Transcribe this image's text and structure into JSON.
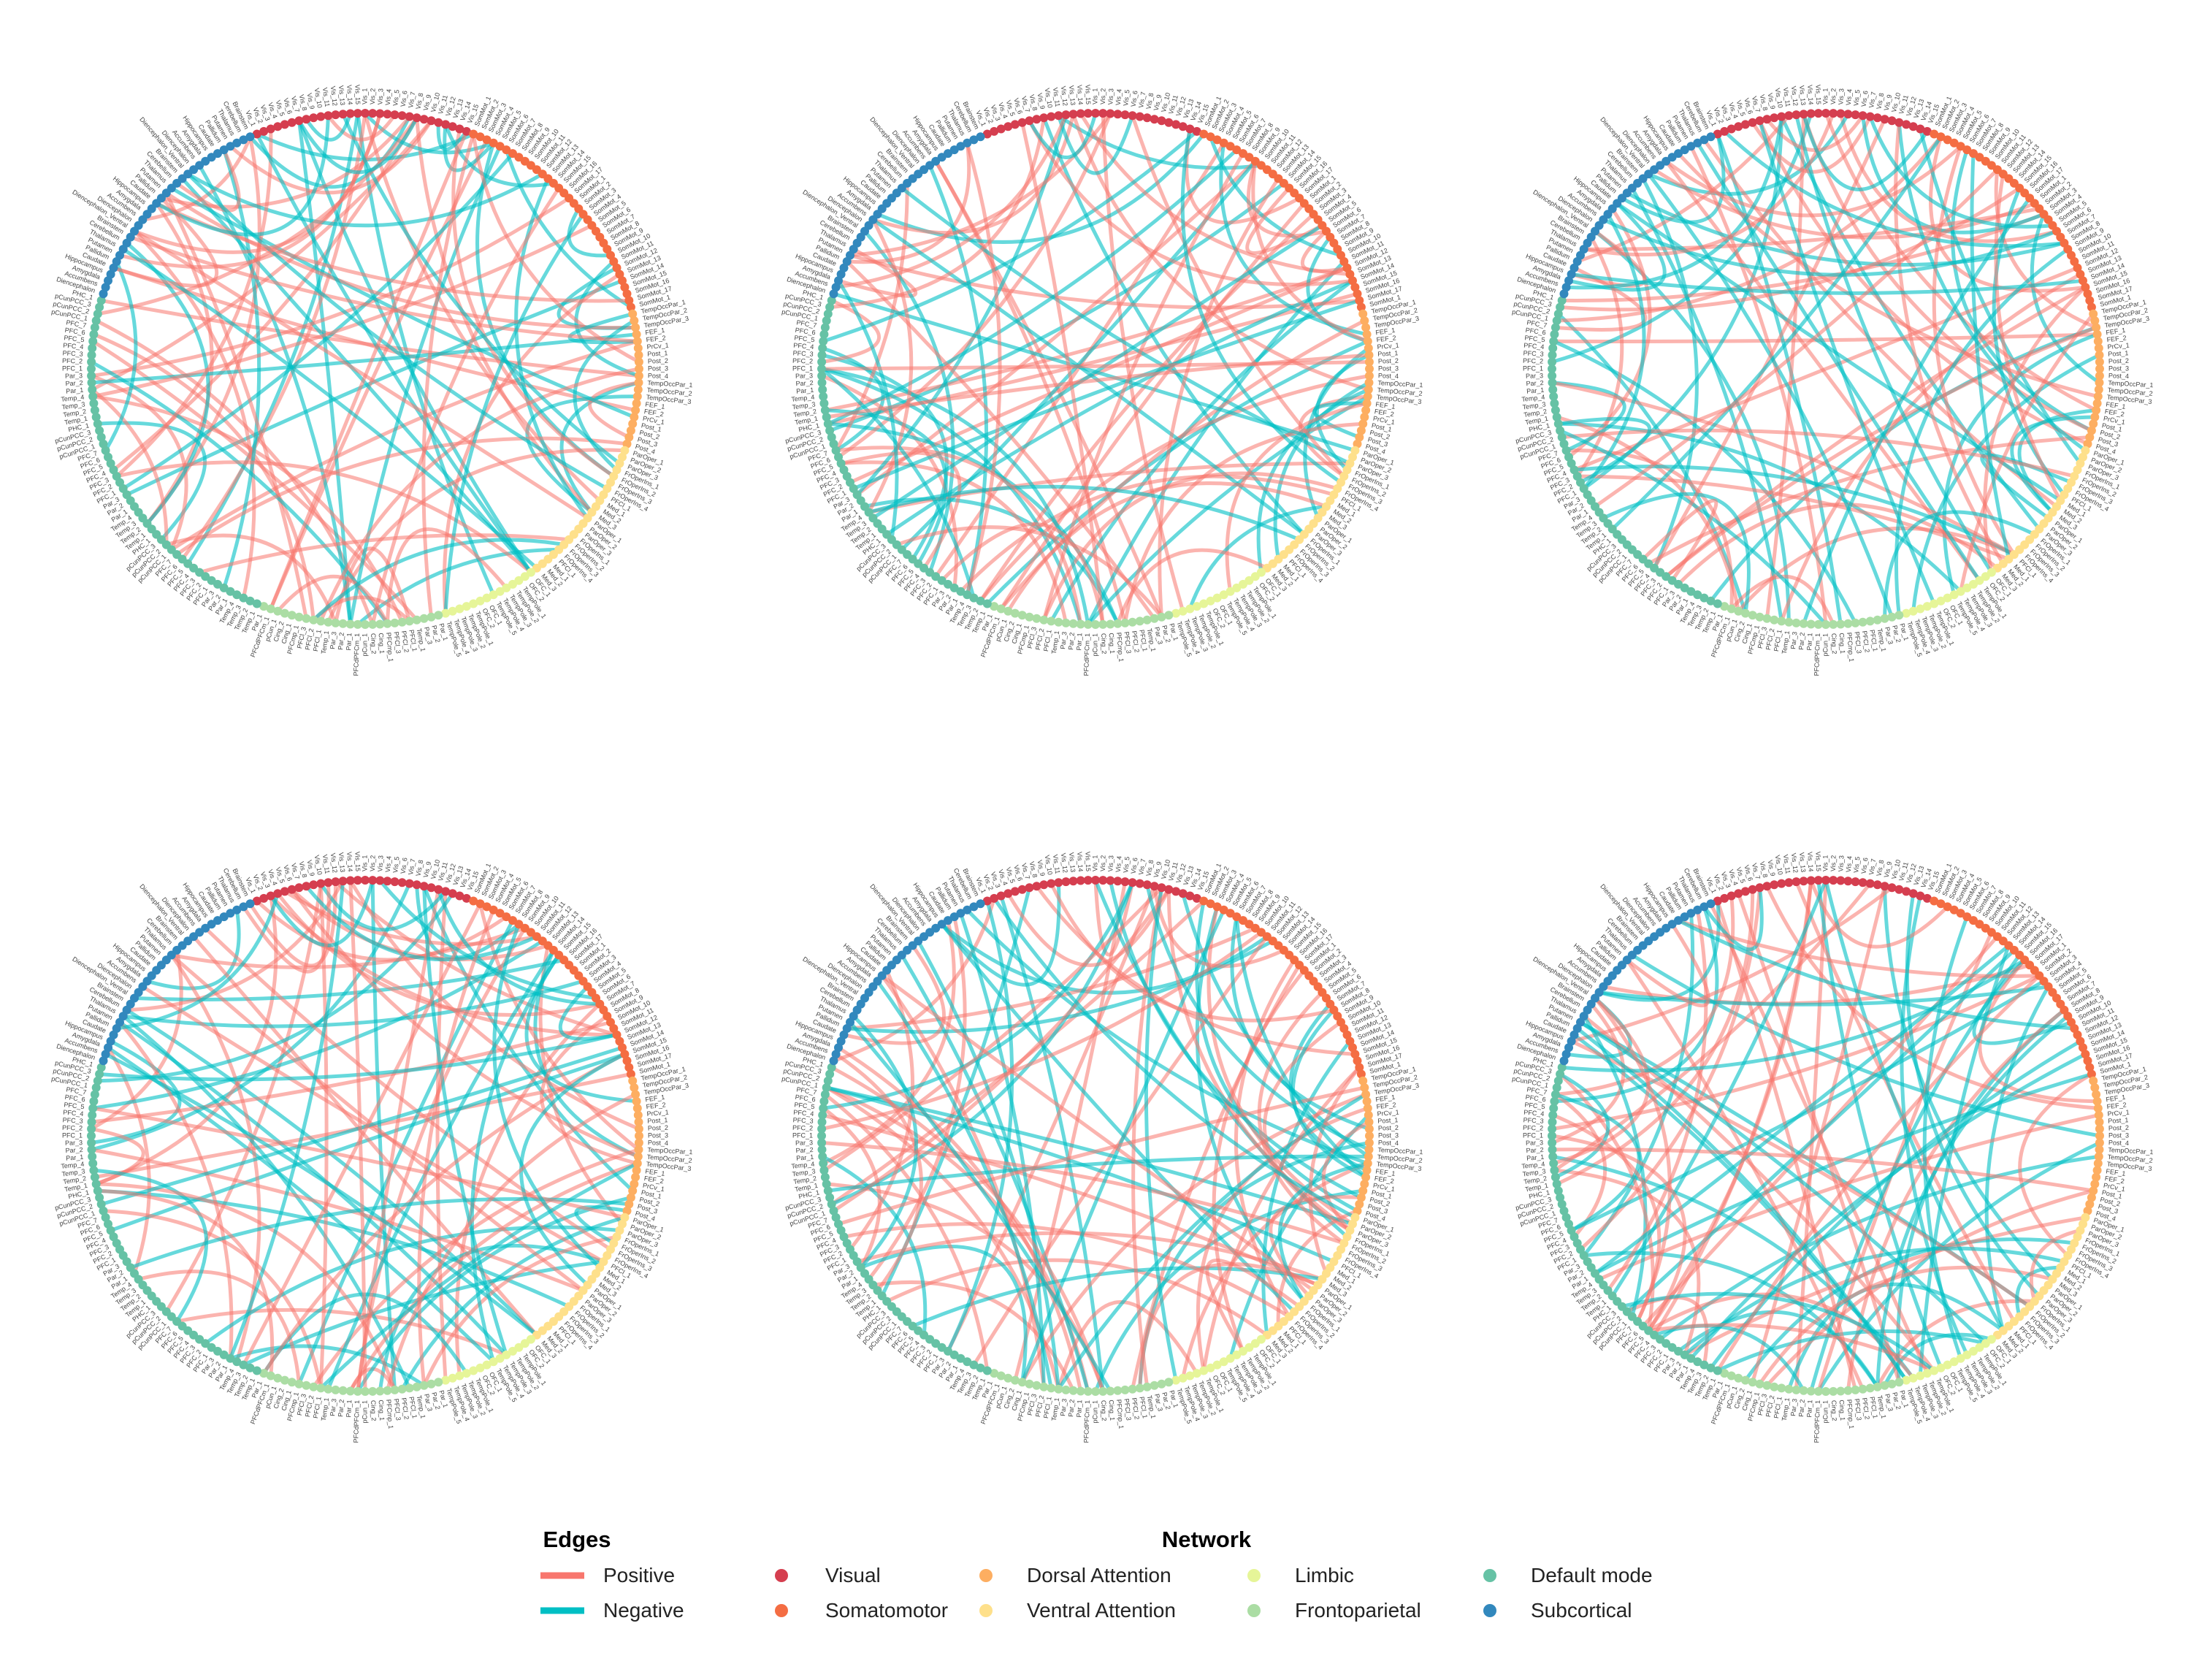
{
  "legend": {
    "edges_title": "Edges",
    "network_title": "Network",
    "edges": [
      {
        "key": "positive",
        "label": "Positive",
        "color": "#f8766d"
      },
      {
        "key": "negative",
        "label": "Negative",
        "color": "#00bfc4"
      }
    ],
    "networks": [
      {
        "key": "visual",
        "label": "Visual",
        "color": "#d53e4f"
      },
      {
        "key": "somatomotor",
        "label": "Somatomotor",
        "color": "#f46d43"
      },
      {
        "key": "dorsal_attention",
        "label": "Dorsal Attention",
        "color": "#fdae61"
      },
      {
        "key": "ventral_attention",
        "label": "Ventral Attention",
        "color": "#fee08b"
      },
      {
        "key": "limbic",
        "label": "Limbic",
        "color": "#e6f598"
      },
      {
        "key": "frontoparietal",
        "label": "Frontoparietal",
        "color": "#abdda4"
      },
      {
        "key": "default_mode",
        "label": "Default mode",
        "color": "#66c2a5"
      },
      {
        "key": "subcortical",
        "label": "Subcortical",
        "color": "#3288bd"
      }
    ]
  },
  "chart_data": {
    "type": "chord",
    "panels": 6,
    "node_count_per_panel": 232,
    "node_networks_in_order": [
      {
        "network": "visual",
        "count": 30
      },
      {
        "network": "somatomotor",
        "count": 35
      },
      {
        "network": "dorsal_attention",
        "count": 20
      },
      {
        "network": "ventral_attention",
        "count": 22
      },
      {
        "network": "limbic",
        "count": 14
      },
      {
        "network": "frontoparietal",
        "count": 25
      },
      {
        "network": "default_mode",
        "count": 54
      },
      {
        "network": "subcortical",
        "count": 32
      }
    ],
    "node_label_names": {
      "visual": [
        "Vis_1",
        "Vis_2",
        "Vis_3",
        "Vis_4",
        "Vis_5",
        "Vis_6",
        "Vis_7",
        "Vis_8",
        "Vis_9",
        "Vis_10",
        "Vis_11",
        "Vis_12",
        "Vis_13",
        "Vis_14",
        "Vis_15"
      ],
      "somatomotor": [
        "SomMot_1",
        "SomMot_2",
        "SomMot_3",
        "SomMot_4",
        "SomMot_5",
        "SomMot_6",
        "SomMot_7",
        "SomMot_8",
        "SomMot_9",
        "SomMot_10",
        "SomMot_11",
        "SomMot_12",
        "SomMot_13",
        "SomMot_14",
        "SomMot_15",
        "SomMot_16",
        "SomMot_17"
      ],
      "dorsal_attention": [
        "TempOccPar_1",
        "TempOccPar_2",
        "TempOccPar_3",
        "FEF_1",
        "FEF_2",
        "PrCv_1",
        "Post_1",
        "Post_2",
        "Post_3",
        "Post_4"
      ],
      "ventral_attention": [
        "ParOper_1",
        "ParOper_2",
        "ParOper_3",
        "FrOperIns_1",
        "FrOperIns_2",
        "FrOperIns_3",
        "FrOperIns_4",
        "PFCl_1",
        "Med_1",
        "Med_2",
        "Med_3"
      ],
      "limbic": [
        "OFC_1",
        "OFC_2",
        "TempPole_1",
        "TempPole_2",
        "TempPole_3",
        "TempPole_4",
        "TempPole_5"
      ],
      "frontoparietal": [
        "Par_1",
        "Par_2",
        "Par_3",
        "Temp_1",
        "PFCl_1",
        "PFCl_2",
        "PFCl_3",
        "PFCmp_1",
        "Cing_1",
        "Cing_2",
        "pCun_1",
        "PFCdPFCm_1"
      ],
      "default_mode": [
        "Temp_1",
        "Temp_2",
        "Temp_3",
        "Temp_4",
        "Par_1",
        "Par_2",
        "Par_3",
        "PFC_1",
        "PFC_2",
        "PFC_3",
        "PFC_4",
        "PFC_5",
        "PFC_6",
        "PFC_7",
        "pCunPCC_1",
        "pCunPCC_2",
        "pCunPCC_3",
        "PHC_1"
      ],
      "subcortical": [
        "Diencephalon",
        "Accumbens",
        "Amygdala",
        "Hippocampus",
        "Caudate",
        "Pallidum",
        "Putamen",
        "Thalamus",
        "Cerebellum",
        "Brainstem",
        "Diencephalon_Ventral"
      ]
    },
    "edge_types": [
      "positive",
      "negative"
    ]
  }
}
